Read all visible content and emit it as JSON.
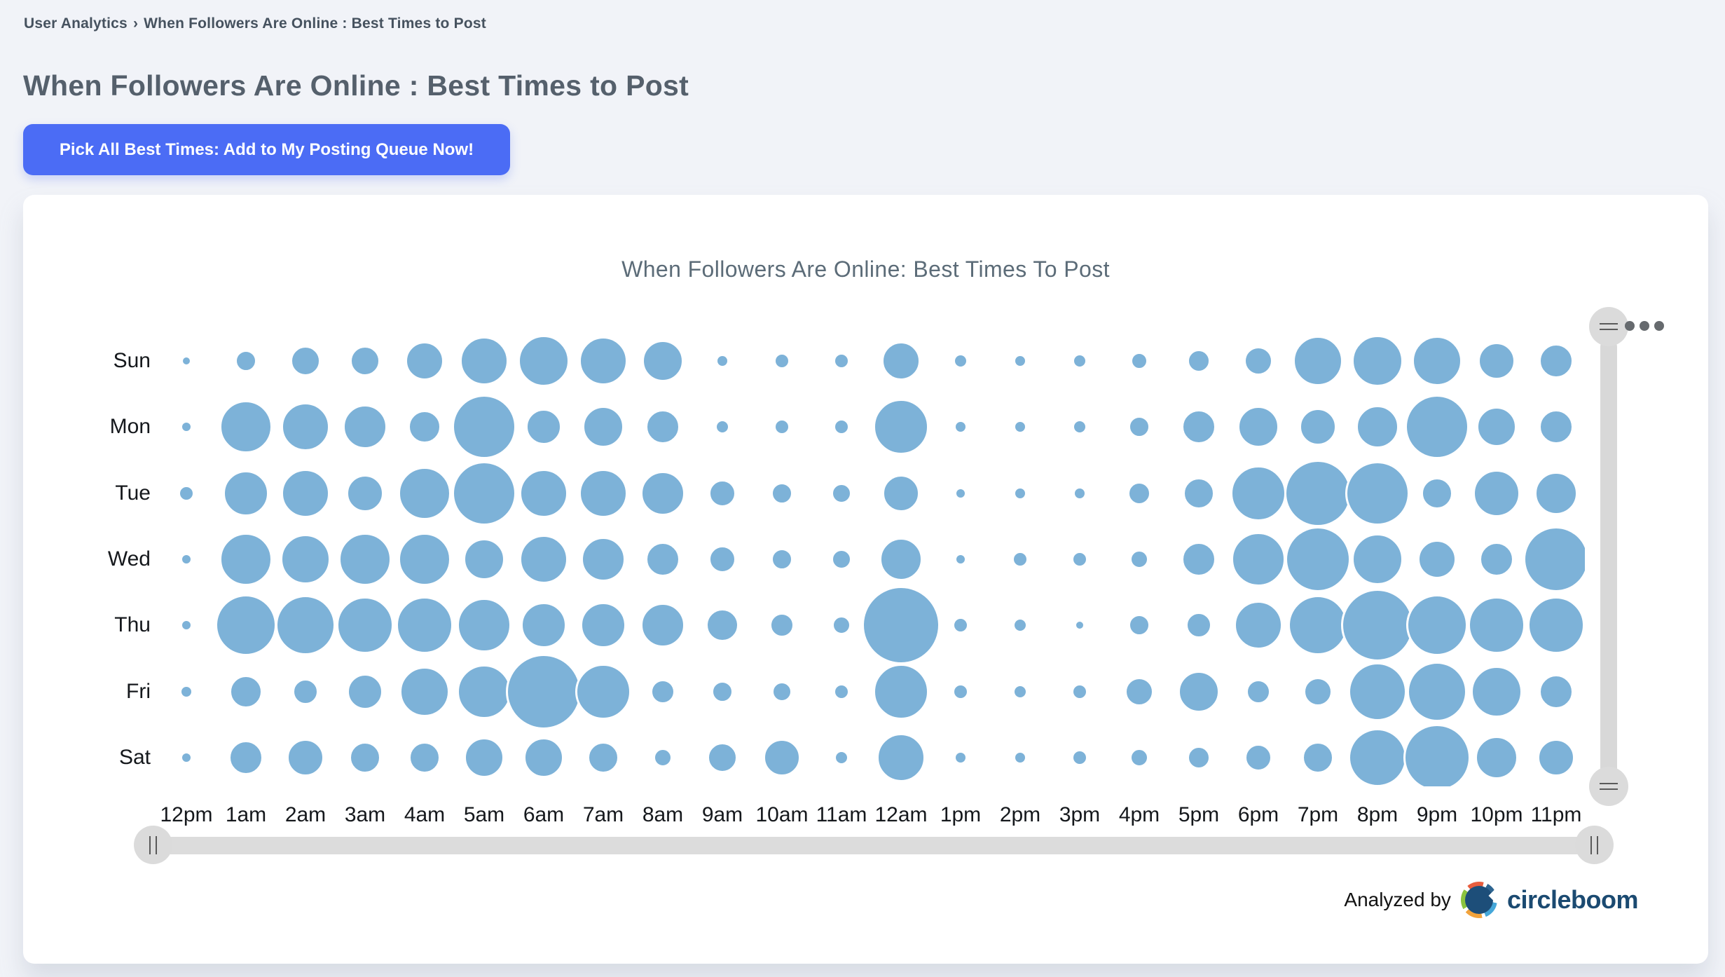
{
  "breadcrumb": {
    "section": "User Analytics",
    "separator": "›",
    "page": "When Followers Are Online : Best Times to Post"
  },
  "page_title": "When Followers Are Online : Best Times to Post",
  "cta_button": {
    "label": "Pick All Best Times: Add to My Posting Queue Now!"
  },
  "chart_title": "When Followers Are Online: Best Times To Post",
  "chart_data": {
    "type": "scatter",
    "subtype": "bubble-heatmap",
    "title": "When Followers Are Online: Best Times To Post",
    "xlabel": "",
    "ylabel": "",
    "grid": false,
    "legend": "none",
    "x_categories": [
      "12pm",
      "1am",
      "2am",
      "3am",
      "4am",
      "5am",
      "6am",
      "7am",
      "8am",
      "9am",
      "10am",
      "11am",
      "12am",
      "1pm",
      "2pm",
      "3pm",
      "4pm",
      "5pm",
      "6pm",
      "7pm",
      "8pm",
      "9pm",
      "10pm",
      "11pm"
    ],
    "y_categories": [
      "Sun",
      "Mon",
      "Tue",
      "Wed",
      "Thu",
      "Fri",
      "Sat"
    ],
    "value_encoding": "bubble radius in px encodes follower online volume (no numeric labels shown)",
    "series": [
      {
        "name": "Sun",
        "radii": [
          8,
          16,
          22,
          22,
          28,
          35,
          37,
          35,
          30,
          10,
          12,
          12,
          28,
          11,
          10,
          11,
          13,
          17,
          21,
          36,
          37,
          36,
          27,
          25
        ]
      },
      {
        "name": "Mon",
        "radii": [
          9,
          38,
          35,
          32,
          24,
          46,
          26,
          30,
          25,
          11,
          12,
          12,
          40,
          10,
          10,
          11,
          16,
          25,
          30,
          27,
          31,
          46,
          29,
          25
        ]
      },
      {
        "name": "Tue",
        "radii": [
          12,
          33,
          35,
          27,
          38,
          46,
          35,
          35,
          32,
          20,
          16,
          15,
          27,
          9,
          10,
          10,
          17,
          23,
          40,
          48,
          46,
          23,
          34,
          31
        ]
      },
      {
        "name": "Wed",
        "radii": [
          9,
          38,
          36,
          38,
          38,
          30,
          35,
          32,
          25,
          20,
          16,
          15,
          31,
          9,
          12,
          12,
          14,
          25,
          39,
          47,
          37,
          28,
          25,
          47
        ]
      },
      {
        "name": "Thu",
        "radii": [
          9,
          44,
          43,
          41,
          41,
          39,
          33,
          33,
          32,
          24,
          18,
          14,
          56,
          12,
          11,
          8,
          16,
          19,
          35,
          43,
          52,
          44,
          41,
          41
        ]
      },
      {
        "name": "Fri",
        "radii": [
          10,
          24,
          19,
          26,
          36,
          39,
          54,
          40,
          18,
          16,
          15,
          12,
          40,
          12,
          11,
          12,
          21,
          30,
          18,
          21,
          42,
          43,
          37,
          25
        ]
      },
      {
        "name": "Sat",
        "radii": [
          9,
          25,
          27,
          23,
          23,
          29,
          29,
          23,
          14,
          22,
          27,
          11,
          35,
          10,
          10,
          12,
          14,
          17,
          20,
          23,
          42,
          48,
          31,
          27
        ]
      }
    ],
    "bubble_color": "#7db2d8"
  },
  "controls": {
    "vertical_scrollbar": {
      "top_handle_icon": "drag-lines",
      "bottom_handle_icon": "drag-lines"
    },
    "horizontal_scrollbar": {
      "left_handle_icon": "drag-bars",
      "right_handle_icon": "drag-bars"
    },
    "menu_dots": "•••"
  },
  "footer": {
    "analyzed_by": "Analyzed by",
    "brand": "circleboom"
  },
  "colors": {
    "accent_button": "#4b6cf5",
    "bubble": "#7db2d8",
    "brand_navy": "#1b4a71",
    "page_background": "#f1f3f8",
    "card_background": "#ffffff",
    "scrollbar": "#d9d9d9"
  }
}
